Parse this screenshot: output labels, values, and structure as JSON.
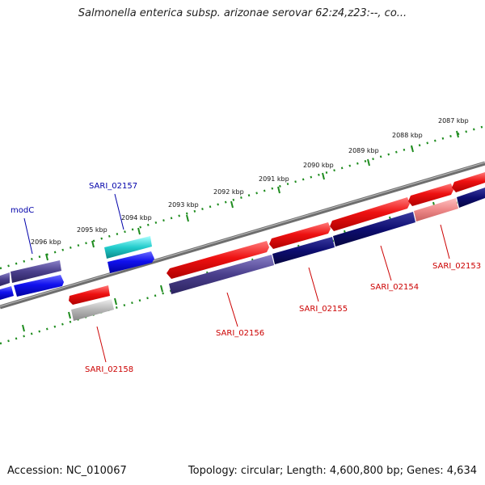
{
  "title": "Salmonella enterica subsp. arizonae serovar 62:z4,z23:--, co...",
  "footer": {
    "accession": "Accession: NC_010067",
    "summary": "Topology: circular; Length: 4,600,800 bp; Genes: 4,634"
  },
  "colors": {
    "forward_cds": "#ee1111",
    "reverse_cds": "#1a1a78",
    "highlight_forward": "#2222dd",
    "highlight_reverse": "#4a3f8c",
    "rna": "#22cccc",
    "pseudo": "#aaaaaa",
    "backbone": "#777777",
    "ticks": "#1e8c1e",
    "label_forward": "#cc0000",
    "label_highlight": "#0000aa"
  },
  "ticks": [
    {
      "label": "2087 kbp"
    },
    {
      "label": "2088 kbp"
    },
    {
      "label": "2089 kbp"
    },
    {
      "label": "2090 kbp"
    },
    {
      "label": "2091 kbp"
    },
    {
      "label": "2092 kbp"
    },
    {
      "label": "2093 kbp"
    },
    {
      "label": "2094 kbp"
    },
    {
      "label": "2095 kbp"
    },
    {
      "label": "2096 kbp"
    }
  ],
  "gene_labels": {
    "modC": "modC",
    "sari_02157": "SARI_02157",
    "sari_02158": "SARI_02158",
    "sari_02156": "SARI_02156",
    "sari_02155": "SARI_02155",
    "sari_02154": "SARI_02154",
    "sari_02153": "SARI_02153"
  }
}
